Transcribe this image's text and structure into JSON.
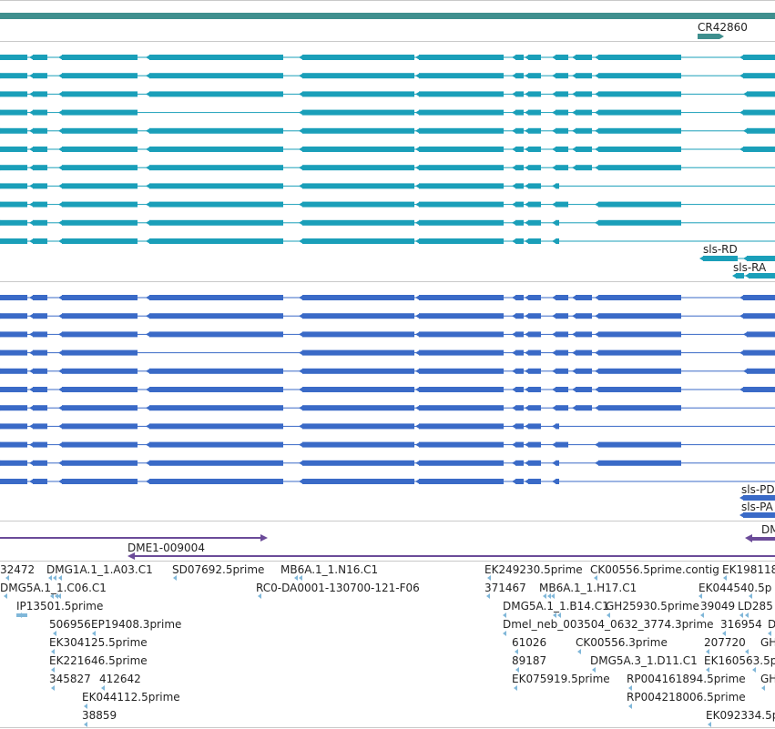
{
  "colors": {
    "gene_bar": "#3f8f8e",
    "transcript_teal": "#1a9fb9",
    "protein_blue": "#3a6ac7",
    "prediction_purple": "#6b4b99",
    "est_lightblue": "#80b7d9",
    "divider": "#c9c9c9",
    "text": "#222222"
  },
  "tracks": {
    "gene": {
      "label": "CR42860"
    },
    "transcripts": {
      "label_rd": "sls-RD",
      "label_ra": "sls-RA"
    },
    "proteins": {
      "label_pd": "sls-PD",
      "label_pa": "sls-PA"
    },
    "predictions": {
      "label_left": "DME1-009004",
      "label_right": "DM"
    },
    "ests": {
      "labels": [
        "32472",
        "DMG1A.1_1.A03.C1",
        "SD07692.5prime",
        "MB6A.1_1.N16.C1",
        "EK249230.5prime",
        "CK00556.5prime.contig",
        "EK198118",
        "DMG5A.1_1.C06.C1",
        "RC0-DA0001-130700-121-F06",
        "371467",
        "MB6A.1_1.H17.C1",
        "EK044540.5p",
        "IP13501.5prime",
        "DMG5A.1_1.B14.C1",
        "GH25930.5prime",
        "39049",
        "LD285",
        "506956",
        "EP19408.3prime",
        "Dmel_neb_003504_0632_3774.3prime",
        "316954",
        "D",
        "EK304125.5prime",
        "61026",
        "CK00556.3prime",
        "207720",
        "GH",
        "EK221646.5prime",
        "89187",
        "DMG5A.3_1.D11.C1",
        "EK160563.5p",
        "345827",
        "412642",
        "EK075919.5prime",
        "RP004161894.5prime",
        "GH",
        "EK044112.5prime",
        "RP004218006.5prime",
        "38859",
        "EK092334.5p"
      ]
    }
  },
  "icons": [
    "strand-arrow-icon"
  ]
}
